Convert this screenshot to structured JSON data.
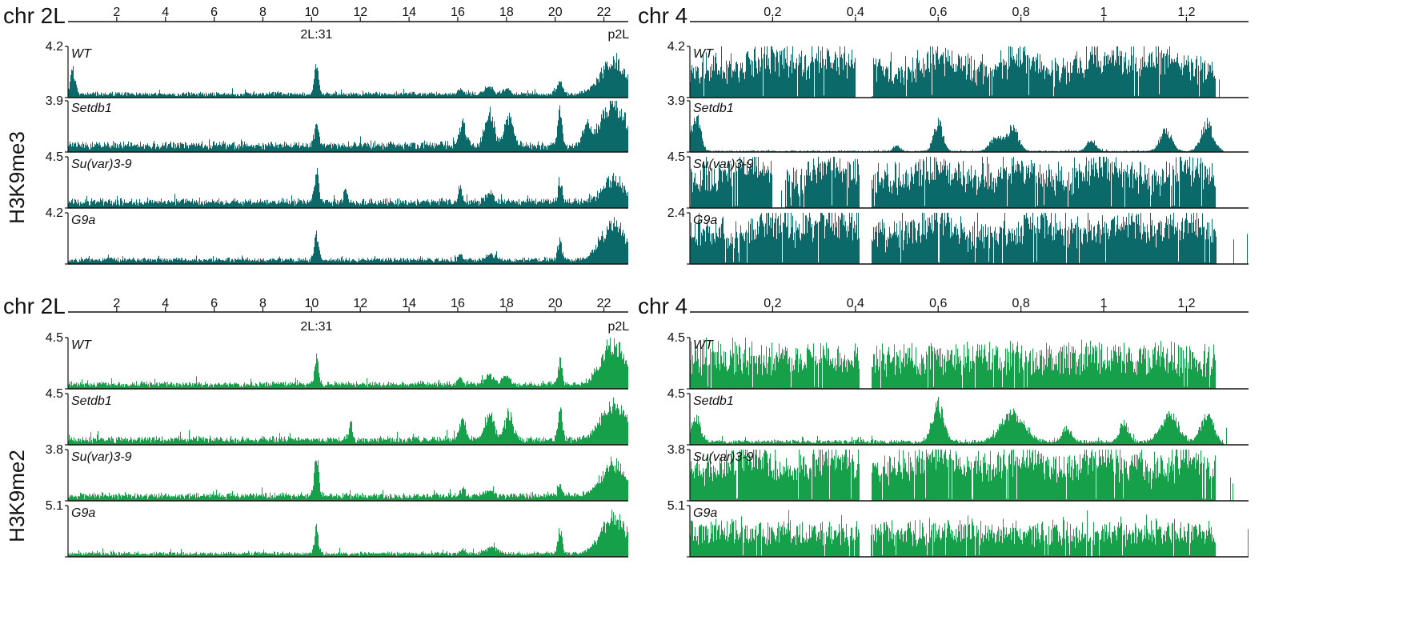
{
  "colors": {
    "H3K9me3": "#0b6a69",
    "H3K9me2": "#16a04a",
    "axis": "#111111"
  },
  "chart_data": [
    {
      "type": "area",
      "modification": "H3K9me3",
      "chromosome": "chr 2L",
      "x_unit": "Mb",
      "xlim": [
        0,
        23.0
      ],
      "x_ticks": [
        2,
        4,
        6,
        8,
        10,
        12,
        14,
        16,
        18,
        20,
        22
      ],
      "annotations": [
        {
          "label": "2L:31",
          "x": 10.2
        },
        {
          "label": "p2L",
          "x": 22.6
        }
      ],
      "tracks": [
        {
          "name": "WT",
          "ymax": "4.2",
          "profile": {
            "baseline": 0.06,
            "noise": 0.05,
            "gaps": [],
            "peaks": [
              [
                0.2,
                0.5,
                0.15
              ],
              [
                10.2,
                0.62,
                0.12
              ],
              [
                16.1,
                0.12,
                0.12
              ],
              [
                17.3,
                0.15,
                0.25
              ],
              [
                18.0,
                0.12,
                0.2
              ],
              [
                20.2,
                0.28,
                0.15
              ],
              [
                22.4,
                0.75,
                0.7
              ]
            ]
          }
        },
        {
          "name": "Setdb1",
          "ymax": "3.9",
          "profile": {
            "baseline": 0.12,
            "noise": 0.08,
            "gaps": [],
            "peaks": [
              [
                10.2,
                0.45,
                0.12
              ],
              [
                16.2,
                0.5,
                0.18
              ],
              [
                17.3,
                0.72,
                0.25
              ],
              [
                18.1,
                0.62,
                0.25
              ],
              [
                20.2,
                0.8,
                0.12
              ],
              [
                21.3,
                0.4,
                0.2
              ],
              [
                22.4,
                0.9,
                0.7
              ]
            ]
          }
        },
        {
          "name": "Su(var)3-9",
          "ymax": "4.5",
          "profile": {
            "baseline": 0.1,
            "noise": 0.08,
            "gaps": [],
            "peaks": [
              [
                10.2,
                0.65,
                0.12
              ],
              [
                11.4,
                0.3,
                0.1
              ],
              [
                16.1,
                0.3,
                0.1
              ],
              [
                17.3,
                0.25,
                0.2
              ],
              [
                20.2,
                0.45,
                0.12
              ],
              [
                22.4,
                0.5,
                0.6
              ]
            ]
          }
        },
        {
          "name": "G9a",
          "ymax": "4.2",
          "profile": {
            "baseline": 0.07,
            "noise": 0.05,
            "gaps": [],
            "peaks": [
              [
                10.2,
                0.55,
                0.12
              ],
              [
                16.1,
                0.12,
                0.12
              ],
              [
                17.4,
                0.12,
                0.3
              ],
              [
                20.2,
                0.38,
                0.12
              ],
              [
                22.4,
                0.8,
                0.7
              ]
            ]
          }
        }
      ]
    },
    {
      "type": "area",
      "modification": "H3K9me3",
      "chromosome": "chr 4",
      "x_unit": "Mb",
      "xlim": [
        0,
        1.35
      ],
      "x_ticks": [
        0.2,
        0.4,
        0.6,
        0.8,
        1,
        1.2
      ],
      "annotations": [],
      "tracks": [
        {
          "name": "WT",
          "ymax": "4.2",
          "profile": {
            "baseline": 0.5,
            "noise": 0.28,
            "gaps": [
              [
                0.4,
                0.44
              ],
              [
                1.27,
                1.35
              ]
            ],
            "peaks": [
              [
                0.2,
                0.3,
                0.06
              ],
              [
                0.35,
                0.3,
                0.05
              ],
              [
                0.6,
                0.25,
                0.05
              ],
              [
                0.8,
                0.3,
                0.05
              ],
              [
                1.0,
                0.3,
                0.06
              ],
              [
                1.15,
                0.3,
                0.05
              ]
            ]
          }
        },
        {
          "name": "Setdb1",
          "ymax": "3.9",
          "profile": {
            "baseline": 0.01,
            "noise": 0.02,
            "gaps": [
              [
                1.29,
                1.35
              ]
            ],
            "peaks": [
              [
                0.015,
                0.75,
                0.015
              ],
              [
                0.5,
                0.15,
                0.01
              ],
              [
                0.6,
                0.65,
                0.015
              ],
              [
                0.74,
                0.3,
                0.02
              ],
              [
                0.78,
                0.5,
                0.02
              ],
              [
                0.97,
                0.25,
                0.015
              ],
              [
                1.15,
                0.45,
                0.02
              ],
              [
                1.25,
                0.6,
                0.02
              ]
            ]
          }
        },
        {
          "name": "Su(var)3-9",
          "ymax": "4.5",
          "profile": {
            "baseline": 0.5,
            "noise": 0.3,
            "gaps": [
              [
                0.2,
                0.23
              ],
              [
                0.41,
                0.44
              ],
              [
                1.27,
                1.35
              ]
            ],
            "peaks": [
              [
                0.15,
                0.35,
                0.05
              ],
              [
                0.35,
                0.35,
                0.05
              ],
              [
                0.6,
                0.3,
                0.05
              ],
              [
                0.8,
                0.3,
                0.05
              ],
              [
                1.0,
                0.35,
                0.05
              ],
              [
                1.2,
                0.3,
                0.05
              ]
            ]
          }
        },
        {
          "name": "G9a",
          "ymax": "2.4",
          "profile": {
            "baseline": 0.55,
            "noise": 0.28,
            "gaps": [
              [
                0.41,
                0.44
              ],
              [
                1.27,
                1.35
              ]
            ],
            "peaks": [
              [
                0.2,
                0.3,
                0.05
              ],
              [
                0.35,
                0.3,
                0.05
              ],
              [
                0.6,
                0.25,
                0.05
              ],
              [
                0.85,
                0.3,
                0.05
              ],
              [
                1.05,
                0.3,
                0.05
              ],
              [
                1.2,
                0.25,
                0.05
              ]
            ]
          }
        }
      ]
    },
    {
      "type": "area",
      "modification": "H3K9me2",
      "chromosome": "chr 2L",
      "x_unit": "Mb",
      "xlim": [
        0,
        23.0
      ],
      "x_ticks": [
        2,
        4,
        6,
        8,
        10,
        12,
        14,
        16,
        18,
        20,
        22
      ],
      "annotations": [
        {
          "label": "2L:31",
          "x": 10.2
        },
        {
          "label": "p2L",
          "x": 22.6
        }
      ],
      "tracks": [
        {
          "name": "WT",
          "ymax": "4.5",
          "profile": {
            "baseline": 0.07,
            "noise": 0.07,
            "gaps": [],
            "peaks": [
              [
                10.2,
                0.55,
                0.12
              ],
              [
                16.1,
                0.15,
                0.12
              ],
              [
                17.3,
                0.2,
                0.25
              ],
              [
                18.0,
                0.18,
                0.2
              ],
              [
                20.2,
                0.5,
                0.12
              ],
              [
                22.4,
                0.85,
                0.7
              ]
            ]
          }
        },
        {
          "name": "Setdb1",
          "ymax": "4.5",
          "profile": {
            "baseline": 0.08,
            "noise": 0.08,
            "gaps": [],
            "peaks": [
              [
                11.6,
                0.35,
                0.1
              ],
              [
                16.2,
                0.45,
                0.18
              ],
              [
                17.3,
                0.55,
                0.25
              ],
              [
                18.1,
                0.55,
                0.25
              ],
              [
                20.2,
                0.75,
                0.12
              ],
              [
                22.4,
                0.8,
                0.7
              ]
            ]
          }
        },
        {
          "name": "Su(var)3-9",
          "ymax": "3.8",
          "profile": {
            "baseline": 0.08,
            "noise": 0.07,
            "gaps": [],
            "peaks": [
              [
                10.2,
                0.85,
                0.12
              ],
              [
                16.2,
                0.12,
                0.12
              ],
              [
                17.3,
                0.12,
                0.25
              ],
              [
                20.2,
                0.25,
                0.12
              ],
              [
                22.4,
                0.7,
                0.7
              ]
            ]
          }
        },
        {
          "name": "G9a",
          "ymax": "5.1",
          "profile": {
            "baseline": 0.05,
            "noise": 0.05,
            "gaps": [],
            "peaks": [
              [
                10.2,
                0.55,
                0.12
              ],
              [
                16.2,
                0.12,
                0.12
              ],
              [
                17.4,
                0.15,
                0.3
              ],
              [
                20.2,
                0.55,
                0.12
              ],
              [
                22.4,
                0.8,
                0.7
              ]
            ]
          }
        }
      ]
    },
    {
      "type": "area",
      "modification": "H3K9me2",
      "chromosome": "chr 4",
      "x_unit": "Mb",
      "xlim": [
        0,
        1.35
      ],
      "x_ticks": [
        0.2,
        0.4,
        0.6,
        0.8,
        1,
        1.2
      ],
      "annotations": [],
      "tracks": [
        {
          "name": "WT",
          "ymax": "4.5",
          "profile": {
            "baseline": 0.65,
            "noise": 0.15,
            "gaps": [
              [
                0.41,
                0.44
              ],
              [
                1.27,
                1.35
              ]
            ],
            "peaks": []
          }
        },
        {
          "name": "Setdb1",
          "ymax": "4.5",
          "profile": {
            "baseline": 0.04,
            "noise": 0.06,
            "gaps": [
              [
                1.29,
                1.35
              ]
            ],
            "peaks": [
              [
                0.015,
                0.55,
                0.015
              ],
              [
                0.6,
                0.75,
                0.02
              ],
              [
                0.78,
                0.6,
                0.04
              ],
              [
                0.91,
                0.3,
                0.015
              ],
              [
                1.05,
                0.4,
                0.015
              ],
              [
                1.16,
                0.55,
                0.03
              ],
              [
                1.25,
                0.6,
                0.02
              ]
            ]
          }
        },
        {
          "name": "Su(var)3-9",
          "ymax": "3.8",
          "profile": {
            "baseline": 0.55,
            "noise": 0.3,
            "gaps": [
              [
                0.41,
                0.44
              ],
              [
                1.27,
                1.35
              ]
            ],
            "peaks": [
              [
                0.15,
                0.35,
                0.05
              ],
              [
                0.35,
                0.35,
                0.05
              ],
              [
                0.6,
                0.35,
                0.05
              ],
              [
                0.8,
                0.3,
                0.05
              ],
              [
                1.0,
                0.35,
                0.05
              ],
              [
                1.2,
                0.3,
                0.05
              ]
            ]
          }
        },
        {
          "name": "G9a",
          "ymax": "5.1",
          "profile": {
            "baseline": 0.5,
            "noise": 0.15,
            "gaps": [
              [
                0.41,
                0.44
              ],
              [
                1.27,
                1.35
              ]
            ],
            "peaks": []
          }
        }
      ]
    }
  ]
}
